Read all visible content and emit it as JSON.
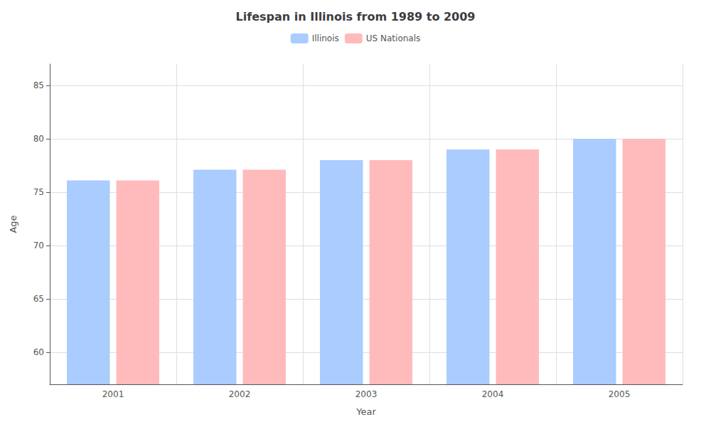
{
  "chart_data": {
    "type": "bar",
    "title": "Lifespan in Illinois from 1989 to 2009",
    "x_label": "Year",
    "y_label": "Age",
    "categories": [
      "2001",
      "2002",
      "2003",
      "2004",
      "2005"
    ],
    "series": [
      {
        "name": "Illinois",
        "color": "#aaccff",
        "values": [
          76.1,
          77.1,
          78.0,
          79.0,
          80.0
        ]
      },
      {
        "name": "US Nationals",
        "color": "#ffbbbb",
        "values": [
          76.1,
          77.1,
          78.0,
          79.0,
          80.0
        ]
      }
    ],
    "ylim": [
      57,
      87
    ],
    "yticks": [
      60,
      65,
      70,
      75,
      80,
      85
    ],
    "grid": true,
    "legend": "top"
  }
}
